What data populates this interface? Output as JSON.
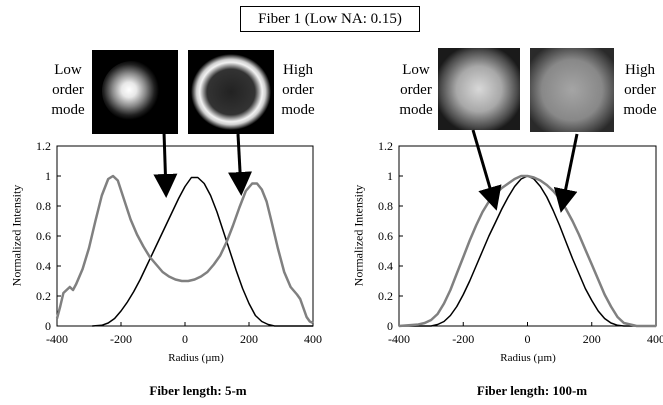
{
  "title": "Fiber 1 (Low NA: 0.15)",
  "chart_data": [
    {
      "type": "line",
      "caption": "Fiber length: 5-m",
      "xlabel": "Radius (µm)",
      "ylabel": "Normalized Intensity",
      "xlim": [
        -400,
        400
      ],
      "ylim": [
        0,
        1.2
      ],
      "xticks": [
        "-400",
        "-200",
        "0",
        "200",
        "400"
      ],
      "yticks": [
        "0",
        "0.2",
        "0.4",
        "0.6",
        "0.8",
        "1",
        "1.2"
      ],
      "grid": false,
      "photo_labels": {
        "left": [
          "Low",
          "order",
          "mode"
        ],
        "right": [
          "High",
          "order",
          "mode"
        ]
      },
      "series": [
        {
          "color": "#000000",
          "x": [
            -290,
            -260,
            -240,
            -220,
            -200,
            -180,
            -160,
            -140,
            -120,
            -100,
            -80,
            -60,
            -40,
            -20,
            0,
            20,
            40,
            60,
            80,
            100,
            120,
            140,
            160,
            180,
            200,
            220,
            240,
            260,
            280,
            300,
            330,
            360,
            400
          ],
          "y": [
            0,
            0.005,
            0.02,
            0.05,
            0.1,
            0.16,
            0.23,
            0.31,
            0.4,
            0.49,
            0.58,
            0.67,
            0.76,
            0.85,
            0.93,
            0.99,
            0.99,
            0.95,
            0.87,
            0.76,
            0.63,
            0.5,
            0.37,
            0.25,
            0.15,
            0.07,
            0.03,
            0.01,
            0,
            0,
            0,
            0,
            0
          ]
        },
        {
          "color": "#808080",
          "x": [
            -400,
            -390,
            -380,
            -370,
            -360,
            -350,
            -340,
            -320,
            -300,
            -280,
            -260,
            -240,
            -225,
            -210,
            -190,
            -170,
            -150,
            -130,
            -110,
            -90,
            -70,
            -50,
            -30,
            -10,
            10,
            30,
            50,
            70,
            90,
            110,
            130,
            150,
            170,
            190,
            210,
            225,
            240,
            255,
            270,
            290,
            310,
            330,
            350,
            360,
            370,
            380,
            390,
            400
          ],
          "y": [
            0.05,
            0.13,
            0.22,
            0.24,
            0.26,
            0.24,
            0.28,
            0.38,
            0.52,
            0.7,
            0.87,
            0.98,
            1.0,
            0.97,
            0.84,
            0.71,
            0.61,
            0.53,
            0.46,
            0.41,
            0.36,
            0.33,
            0.31,
            0.3,
            0.3,
            0.31,
            0.33,
            0.36,
            0.41,
            0.47,
            0.56,
            0.67,
            0.79,
            0.9,
            0.95,
            0.95,
            0.91,
            0.83,
            0.7,
            0.52,
            0.36,
            0.26,
            0.21,
            0.18,
            0.12,
            0.06,
            0.03,
            0.02
          ]
        }
      ]
    },
    {
      "type": "line",
      "caption": "Fiber length: 100-m",
      "xlabel": "Radius (µm)",
      "ylabel": "Normalized Intensity",
      "xlim": [
        -400,
        400
      ],
      "ylim": [
        0,
        1.2
      ],
      "xticks": [
        "-400",
        "-200",
        "0",
        "200",
        "400"
      ],
      "yticks": [
        "0",
        "0.2",
        "0.4",
        "0.6",
        "0.8",
        "1",
        "1.2"
      ],
      "grid": false,
      "photo_labels": {
        "left": [
          "Low",
          "order",
          "mode"
        ],
        "right": [
          "High",
          "order",
          "mode"
        ]
      },
      "series": [
        {
          "color": "#000000",
          "x": [
            -400,
            -300,
            -280,
            -260,
            -240,
            -220,
            -200,
            -180,
            -160,
            -140,
            -120,
            -100,
            -80,
            -60,
            -40,
            -20,
            0,
            20,
            40,
            60,
            80,
            100,
            120,
            140,
            160,
            180,
            200,
            220,
            240,
            260,
            280,
            300,
            400
          ],
          "y": [
            0,
            0,
            0.01,
            0.03,
            0.07,
            0.13,
            0.21,
            0.3,
            0.4,
            0.5,
            0.6,
            0.69,
            0.78,
            0.86,
            0.93,
            0.98,
            1.0,
            0.98,
            0.93,
            0.86,
            0.77,
            0.67,
            0.56,
            0.45,
            0.35,
            0.25,
            0.17,
            0.1,
            0.05,
            0.02,
            0.005,
            0,
            0
          ]
        },
        {
          "color": "#808080",
          "x": [
            -400,
            -340,
            -320,
            -300,
            -280,
            -260,
            -240,
            -220,
            -200,
            -180,
            -160,
            -140,
            -120,
            -100,
            -80,
            -60,
            -40,
            -20,
            0,
            20,
            40,
            60,
            80,
            100,
            120,
            140,
            160,
            180,
            200,
            220,
            240,
            260,
            280,
            300,
            320,
            340,
            400
          ],
          "y": [
            0,
            0.01,
            0.02,
            0.04,
            0.08,
            0.15,
            0.24,
            0.35,
            0.46,
            0.57,
            0.67,
            0.76,
            0.83,
            0.88,
            0.92,
            0.95,
            0.98,
            1.0,
            1.0,
            0.99,
            0.97,
            0.94,
            0.9,
            0.85,
            0.78,
            0.7,
            0.61,
            0.51,
            0.41,
            0.31,
            0.21,
            0.13,
            0.06,
            0.02,
            0.01,
            0,
            0
          ]
        }
      ]
    }
  ]
}
